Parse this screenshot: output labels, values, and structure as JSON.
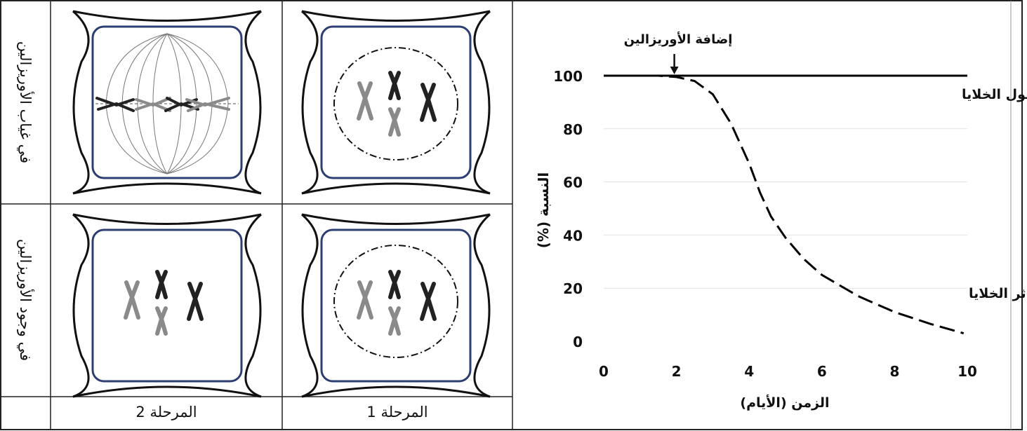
{
  "table": {
    "row_labels": [
      "في غياب الأوريزالين",
      "في وجود الأوريزالين"
    ],
    "column_labels": [
      "المرحلة 2",
      "المرحلة 1"
    ]
  },
  "chart_data": {
    "type": "line",
    "xlabel": "الزمن (الأيام)",
    "ylabel": "النسبة (%)",
    "xlim": [
      0,
      10
    ],
    "ylim": [
      0,
      100
    ],
    "x_ticks": [
      "0",
      "2",
      "4",
      "6",
      "8",
      "10"
    ],
    "y_ticks": [
      "0",
      "20",
      "40",
      "60",
      "80",
      "100"
    ],
    "grid": "horizontal",
    "annotation": {
      "text": "إضافة الأوريزالين",
      "x": 2
    },
    "series": [
      {
        "name": "طول الخلايا",
        "style": "solid",
        "color": "#000000",
        "points": [
          [
            0,
            100
          ],
          [
            10,
            100
          ]
        ]
      },
      {
        "name": "تكاثر الخلايا",
        "style": "dashed",
        "color": "#000000",
        "points": [
          [
            0,
            100
          ],
          [
            1.5,
            100
          ],
          [
            2,
            99.5
          ],
          [
            2.5,
            98
          ],
          [
            3,
            93
          ],
          [
            3.5,
            82
          ],
          [
            4,
            67
          ],
          [
            4.3,
            56
          ],
          [
            4.6,
            47
          ],
          [
            5,
            39
          ],
          [
            5.5,
            31
          ],
          [
            6,
            25
          ],
          [
            7,
            17
          ],
          [
            8,
            11
          ],
          [
            9,
            6.5
          ],
          [
            9.9,
            3
          ]
        ]
      }
    ]
  }
}
